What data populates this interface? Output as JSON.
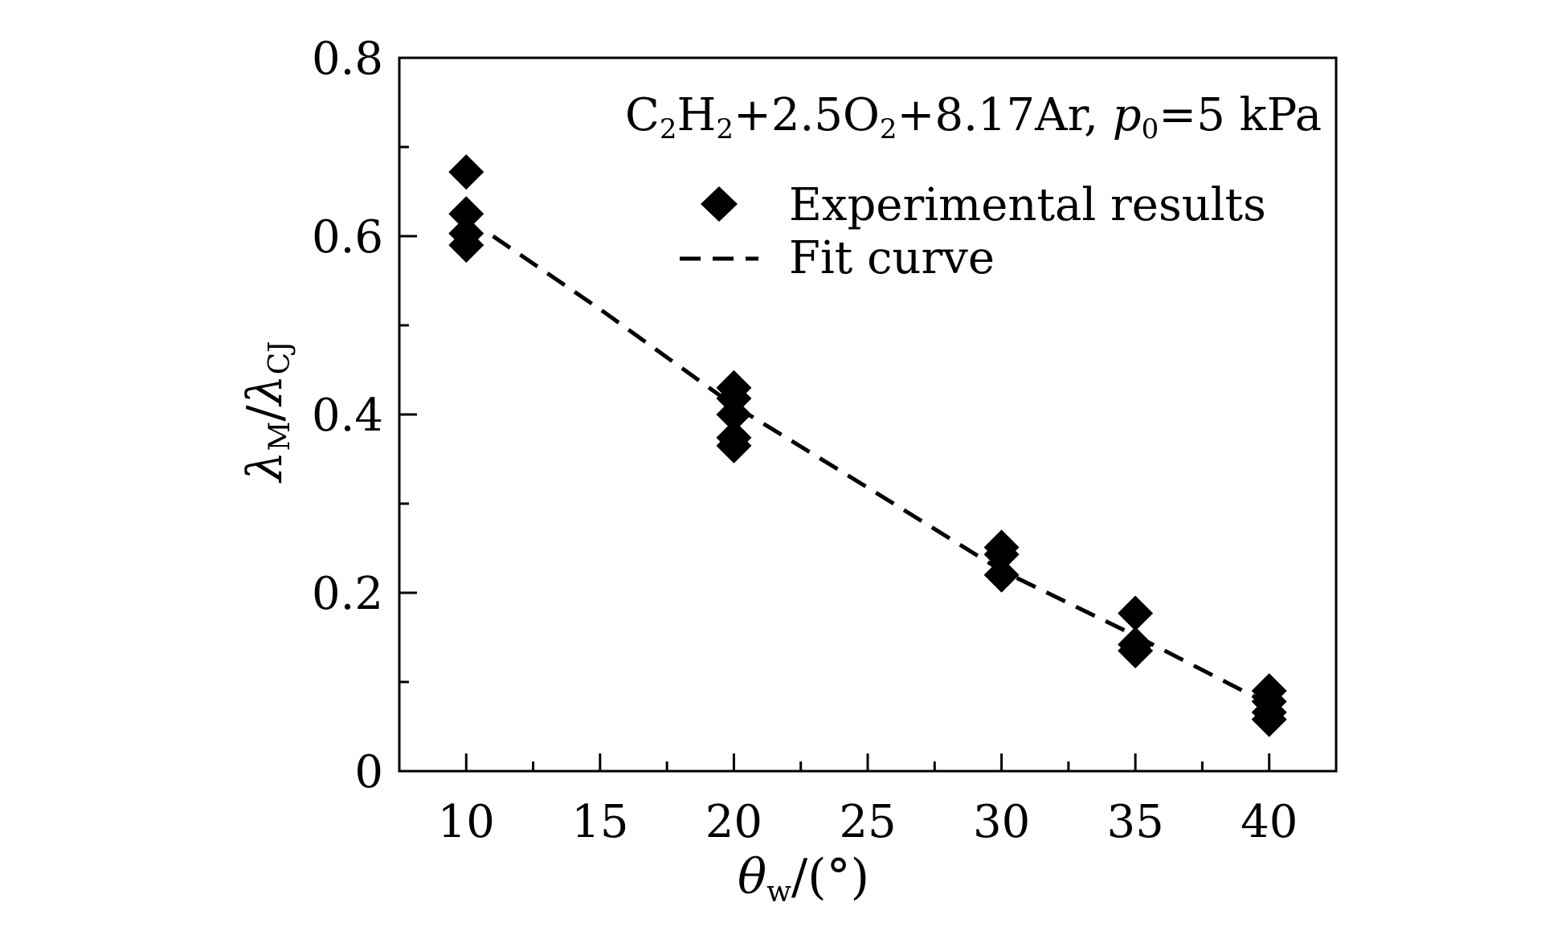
{
  "chart_data": {
    "type": "scatter",
    "annotation": {
      "C": "C",
      "sub2a": "2",
      "H": "H",
      "sub2b": "2",
      "mid": "+2.5O",
      "sub2c": "2",
      "ar": "+8.17Ar, ",
      "p": "p",
      "sub0": "0",
      "pval": "=5 kPa"
    },
    "xlabel": {
      "symbol": "θ",
      "sub": "w",
      "unit": "/(°)"
    },
    "ylabel": {
      "lam1": "λ",
      "sub1": "M",
      "slash": "/",
      "lam2": "λ",
      "sub2": "CJ"
    },
    "xlim": [
      7.5,
      42.5
    ],
    "ylim": [
      0,
      0.8
    ],
    "x_ticks": [
      10,
      15,
      20,
      25,
      30,
      35,
      40
    ],
    "x_tick_labels": [
      "10",
      "15",
      "20",
      "25",
      "30",
      "35",
      "40"
    ],
    "y_ticks": [
      0,
      0.2,
      0.4,
      0.6,
      0.8
    ],
    "y_tick_labels": [
      "0",
      "0.2",
      "0.4",
      "0.6",
      "0.8"
    ],
    "legend": {
      "experimental": "Experimental results",
      "fit": "Fit curve"
    },
    "series": [
      {
        "name": "Experimental results",
        "marker": "diamond",
        "points": [
          [
            10,
            0.672
          ],
          [
            10,
            0.625
          ],
          [
            10,
            0.603
          ],
          [
            10,
            0.59
          ],
          [
            20,
            0.43
          ],
          [
            20,
            0.418
          ],
          [
            20,
            0.4
          ],
          [
            20,
            0.374
          ],
          [
            20,
            0.365
          ],
          [
            30,
            0.251
          ],
          [
            30,
            0.243
          ],
          [
            30,
            0.22
          ],
          [
            35,
            0.177
          ],
          [
            35,
            0.142
          ],
          [
            35,
            0.135
          ],
          [
            40,
            0.09
          ],
          [
            40,
            0.078
          ],
          [
            40,
            0.066
          ],
          [
            40,
            0.058
          ]
        ]
      },
      {
        "name": "Fit curve",
        "style": "dashed",
        "points": [
          [
            11,
            0.6
          ],
          [
            15,
            0.518
          ],
          [
            20,
            0.41
          ],
          [
            25,
            0.318
          ],
          [
            30,
            0.225
          ],
          [
            35,
            0.152
          ],
          [
            40,
            0.075
          ]
        ]
      }
    ]
  }
}
